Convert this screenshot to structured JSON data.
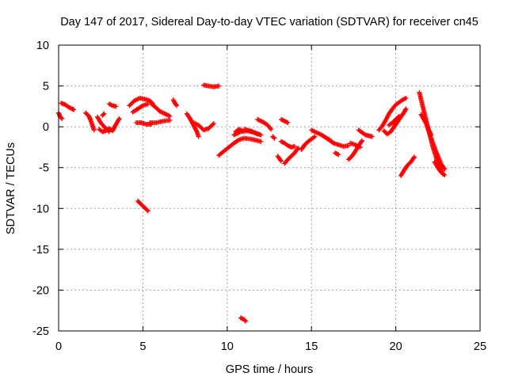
{
  "chart_data": {
    "type": "scatter",
    "title": "Day 147 of 2017, Sidereal Day-to-day VTEC variation (SDTVAR) for receiver cn45",
    "xlabel": "GPS time / hours",
    "ylabel": "SDTVAR / TECUs",
    "xlim": [
      0,
      25
    ],
    "ylim": [
      -25,
      10
    ],
    "x_ticks": [
      0,
      5,
      10,
      15,
      20,
      25
    ],
    "x_tick_labels": [
      "0",
      "5",
      "10",
      "15",
      "20",
      "25"
    ],
    "y_ticks": [
      10,
      5,
      0,
      -5,
      -10,
      -15,
      -20,
      -25
    ],
    "y_tick_labels": [
      "10",
      "5",
      "0",
      "-5",
      "-10",
      "-15",
      "-20",
      "-25"
    ],
    "grid": true,
    "marker": "plus",
    "color": "#ff0000",
    "segments": [
      {
        "x": [
          0.0,
          0.1,
          0.2
        ],
        "y": [
          1.7,
          1.2,
          1.0
        ]
      },
      {
        "x": [
          0.15,
          0.4,
          0.6,
          0.8,
          0.9
        ],
        "y": [
          2.9,
          2.7,
          2.4,
          2.2,
          2.1
        ]
      },
      {
        "x": [
          1.6,
          1.8,
          1.9,
          2.0,
          2.1
        ],
        "y": [
          1.7,
          1.3,
          0.8,
          0.2,
          -0.4
        ]
      },
      {
        "x": [
          2.3,
          2.5,
          2.7,
          2.9,
          3.0
        ],
        "y": [
          1.2,
          0.5,
          0.0,
          -0.4,
          -0.6
        ]
      },
      {
        "x": [
          2.4,
          2.6,
          2.8,
          3.0,
          3.2,
          3.4,
          3.6
        ],
        "y": [
          -0.3,
          -0.6,
          -0.5,
          -0.2,
          -0.5,
          0.3,
          1.0
        ]
      },
      {
        "x": [
          2.6,
          2.7
        ],
        "y": [
          1.4,
          1.6
        ]
      },
      {
        "x": [
          3.0,
          3.2,
          3.4
        ],
        "y": [
          2.8,
          2.6,
          2.5
        ]
      },
      {
        "x": [
          4.2,
          4.5,
          4.8,
          5.1,
          5.4,
          5.6
        ],
        "y": [
          2.6,
          3.2,
          3.5,
          3.4,
          3.2,
          2.8
        ]
      },
      {
        "x": [
          4.4,
          4.7,
          5.0,
          5.3
        ],
        "y": [
          1.8,
          2.2,
          2.6,
          2.8
        ]
      },
      {
        "x": [
          4.6,
          4.9,
          5.2,
          5.5
        ],
        "y": [
          0.5,
          0.5,
          0.3,
          0.3
        ]
      },
      {
        "x": [
          5.5,
          5.8,
          6.0,
          6.2,
          6.4,
          6.6
        ],
        "y": [
          2.8,
          2.3,
          1.9,
          1.7,
          1.5,
          1.3
        ]
      },
      {
        "x": [
          5.4,
          5.8,
          6.2,
          6.6
        ],
        "y": [
          0.5,
          0.5,
          0.7,
          0.8
        ]
      },
      {
        "x": [
          6.8,
          6.9,
          7.0
        ],
        "y": [
          3.3,
          2.9,
          2.6
        ]
      },
      {
        "x": [
          4.7,
          4.9,
          5.1,
          5.3
        ],
        "y": [
          -9.1,
          -9.5,
          -9.9,
          -10.3
        ]
      },
      {
        "x": [
          7.6,
          7.8,
          8.0,
          8.2,
          8.3
        ],
        "y": [
          1.6,
          1.0,
          0.2,
          -0.6,
          -1.2
        ]
      },
      {
        "x": [
          8.0,
          8.3,
          8.6,
          8.9,
          9.2
        ],
        "y": [
          0.5,
          0.2,
          -0.4,
          -0.2,
          0.4
        ]
      },
      {
        "x": [
          8.6,
          8.9,
          9.2,
          9.5
        ],
        "y": [
          5.1,
          5.0,
          4.9,
          5.0
        ]
      },
      {
        "x": [
          9.5,
          9.8,
          10.1,
          10.4,
          10.7,
          11.0,
          11.4,
          12.0
        ],
        "y": [
          -3.5,
          -3.0,
          -2.5,
          -2.0,
          -1.6,
          -1.4,
          -1.5,
          -1.8
        ]
      },
      {
        "x": [
          10.4,
          10.8,
          11.2,
          11.6,
          12.0
        ],
        "y": [
          -1.0,
          -0.6,
          -0.5,
          -0.7,
          -1.0
        ]
      },
      {
        "x": [
          10.5,
          10.7,
          10.9
        ],
        "y": [
          -0.6,
          -0.3,
          -0.5
        ]
      },
      {
        "x": [
          11.0,
          11.4,
          11.8
        ],
        "y": [
          -0.3,
          -0.5,
          -0.9
        ]
      },
      {
        "x": [
          10.8,
          11.0,
          11.1
        ],
        "y": [
          -23.4,
          -23.6,
          -23.8
        ]
      },
      {
        "x": [
          11.8,
          12.0,
          12.2,
          12.4,
          12.6
        ],
        "y": [
          0.9,
          0.7,
          0.5,
          0.2,
          -0.3
        ]
      },
      {
        "x": [
          12.7,
          12.8
        ],
        "y": [
          -1.2,
          -1.4
        ]
      },
      {
        "x": [
          13.2,
          13.4,
          13.6
        ],
        "y": [
          0.9,
          0.7,
          0.5
        ]
      },
      {
        "x": [
          13.2,
          13.4,
          13.6,
          13.8,
          14.0
        ],
        "y": [
          -1.8,
          -2.0,
          -2.3,
          -2.5,
          -2.4
        ]
      },
      {
        "x": [
          13.0,
          13.2
        ],
        "y": [
          -3.6,
          -4.2
        ]
      },
      {
        "x": [
          13.4,
          13.6,
          13.8,
          14.0,
          14.2
        ],
        "y": [
          -4.5,
          -4.0,
          -3.6,
          -3.2,
          -2.6
        ]
      },
      {
        "x": [
          14.4,
          14.6,
          14.8,
          15.0,
          15.2
        ],
        "y": [
          -2.8,
          -2.2,
          -1.8,
          -1.5,
          -1.2
        ]
      },
      {
        "x": [
          15.0,
          15.3,
          15.6,
          15.9,
          16.2
        ],
        "y": [
          -0.4,
          -0.7,
          -1.0,
          -1.4,
          -1.8
        ]
      },
      {
        "x": [
          16.0,
          16.3,
          16.6,
          16.9,
          17.2
        ],
        "y": [
          -1.5,
          -2.0,
          -2.2,
          -2.4,
          -2.3
        ]
      },
      {
        "x": [
          16.4,
          16.6
        ],
        "y": [
          -3.2,
          -3.4
        ]
      },
      {
        "x": [
          17.2,
          17.4,
          17.6,
          17.8,
          18.0
        ],
        "y": [
          -4.0,
          -3.6,
          -3.0,
          -2.3,
          -1.7
        ]
      },
      {
        "x": [
          17.3,
          17.6,
          17.9
        ],
        "y": [
          -2.0,
          -2.2,
          -2.5
        ]
      },
      {
        "x": [
          17.8,
          18.0,
          18.2,
          18.4,
          18.6
        ],
        "y": [
          -0.4,
          -0.7,
          -1.0,
          -1.1,
          -1.2
        ]
      },
      {
        "x": [
          19.0,
          19.2,
          19.4,
          19.6,
          19.8,
          20.0,
          20.2,
          20.4,
          20.6
        ],
        "y": [
          -0.4,
          0.1,
          0.8,
          1.6,
          2.2,
          2.7,
          3.0,
          3.3,
          3.5
        ]
      },
      {
        "x": [
          19.3,
          19.5,
          19.7,
          19.9,
          20.1,
          20.3,
          20.5,
          20.6
        ],
        "y": [
          -0.5,
          -0.9,
          -0.6,
          0.0,
          0.6,
          1.2,
          1.8,
          2.2
        ]
      },
      {
        "x": [
          19.6,
          19.8,
          20.0,
          20.2
        ],
        "y": [
          0.2,
          0.5,
          0.9,
          1.3
        ]
      },
      {
        "x": [
          20.3,
          20.5,
          20.7,
          20.9,
          21.1
        ],
        "y": [
          -6.0,
          -5.3,
          -4.7,
          -4.3,
          -3.7
        ]
      },
      {
        "x": [
          21.4,
          21.6,
          21.8,
          22.0,
          22.2,
          22.4,
          22.6,
          22.8
        ],
        "y": [
          4.2,
          2.5,
          0.8,
          -0.8,
          -2.5,
          -3.8,
          -5.0,
          -5.8
        ]
      },
      {
        "x": [
          21.5,
          21.8,
          22.1,
          22.4,
          22.7,
          22.9
        ],
        "y": [
          1.5,
          0.4,
          -1.4,
          -3.1,
          -4.6,
          -5.2
        ]
      },
      {
        "x": [
          21.9,
          22.0,
          22.1
        ],
        "y": [
          -0.1,
          -0.6,
          -1.0
        ]
      },
      {
        "x": [
          22.3,
          22.5,
          22.7,
          22.9
        ],
        "y": [
          -4.3,
          -5.0,
          -5.6,
          -5.9
        ]
      }
    ]
  }
}
